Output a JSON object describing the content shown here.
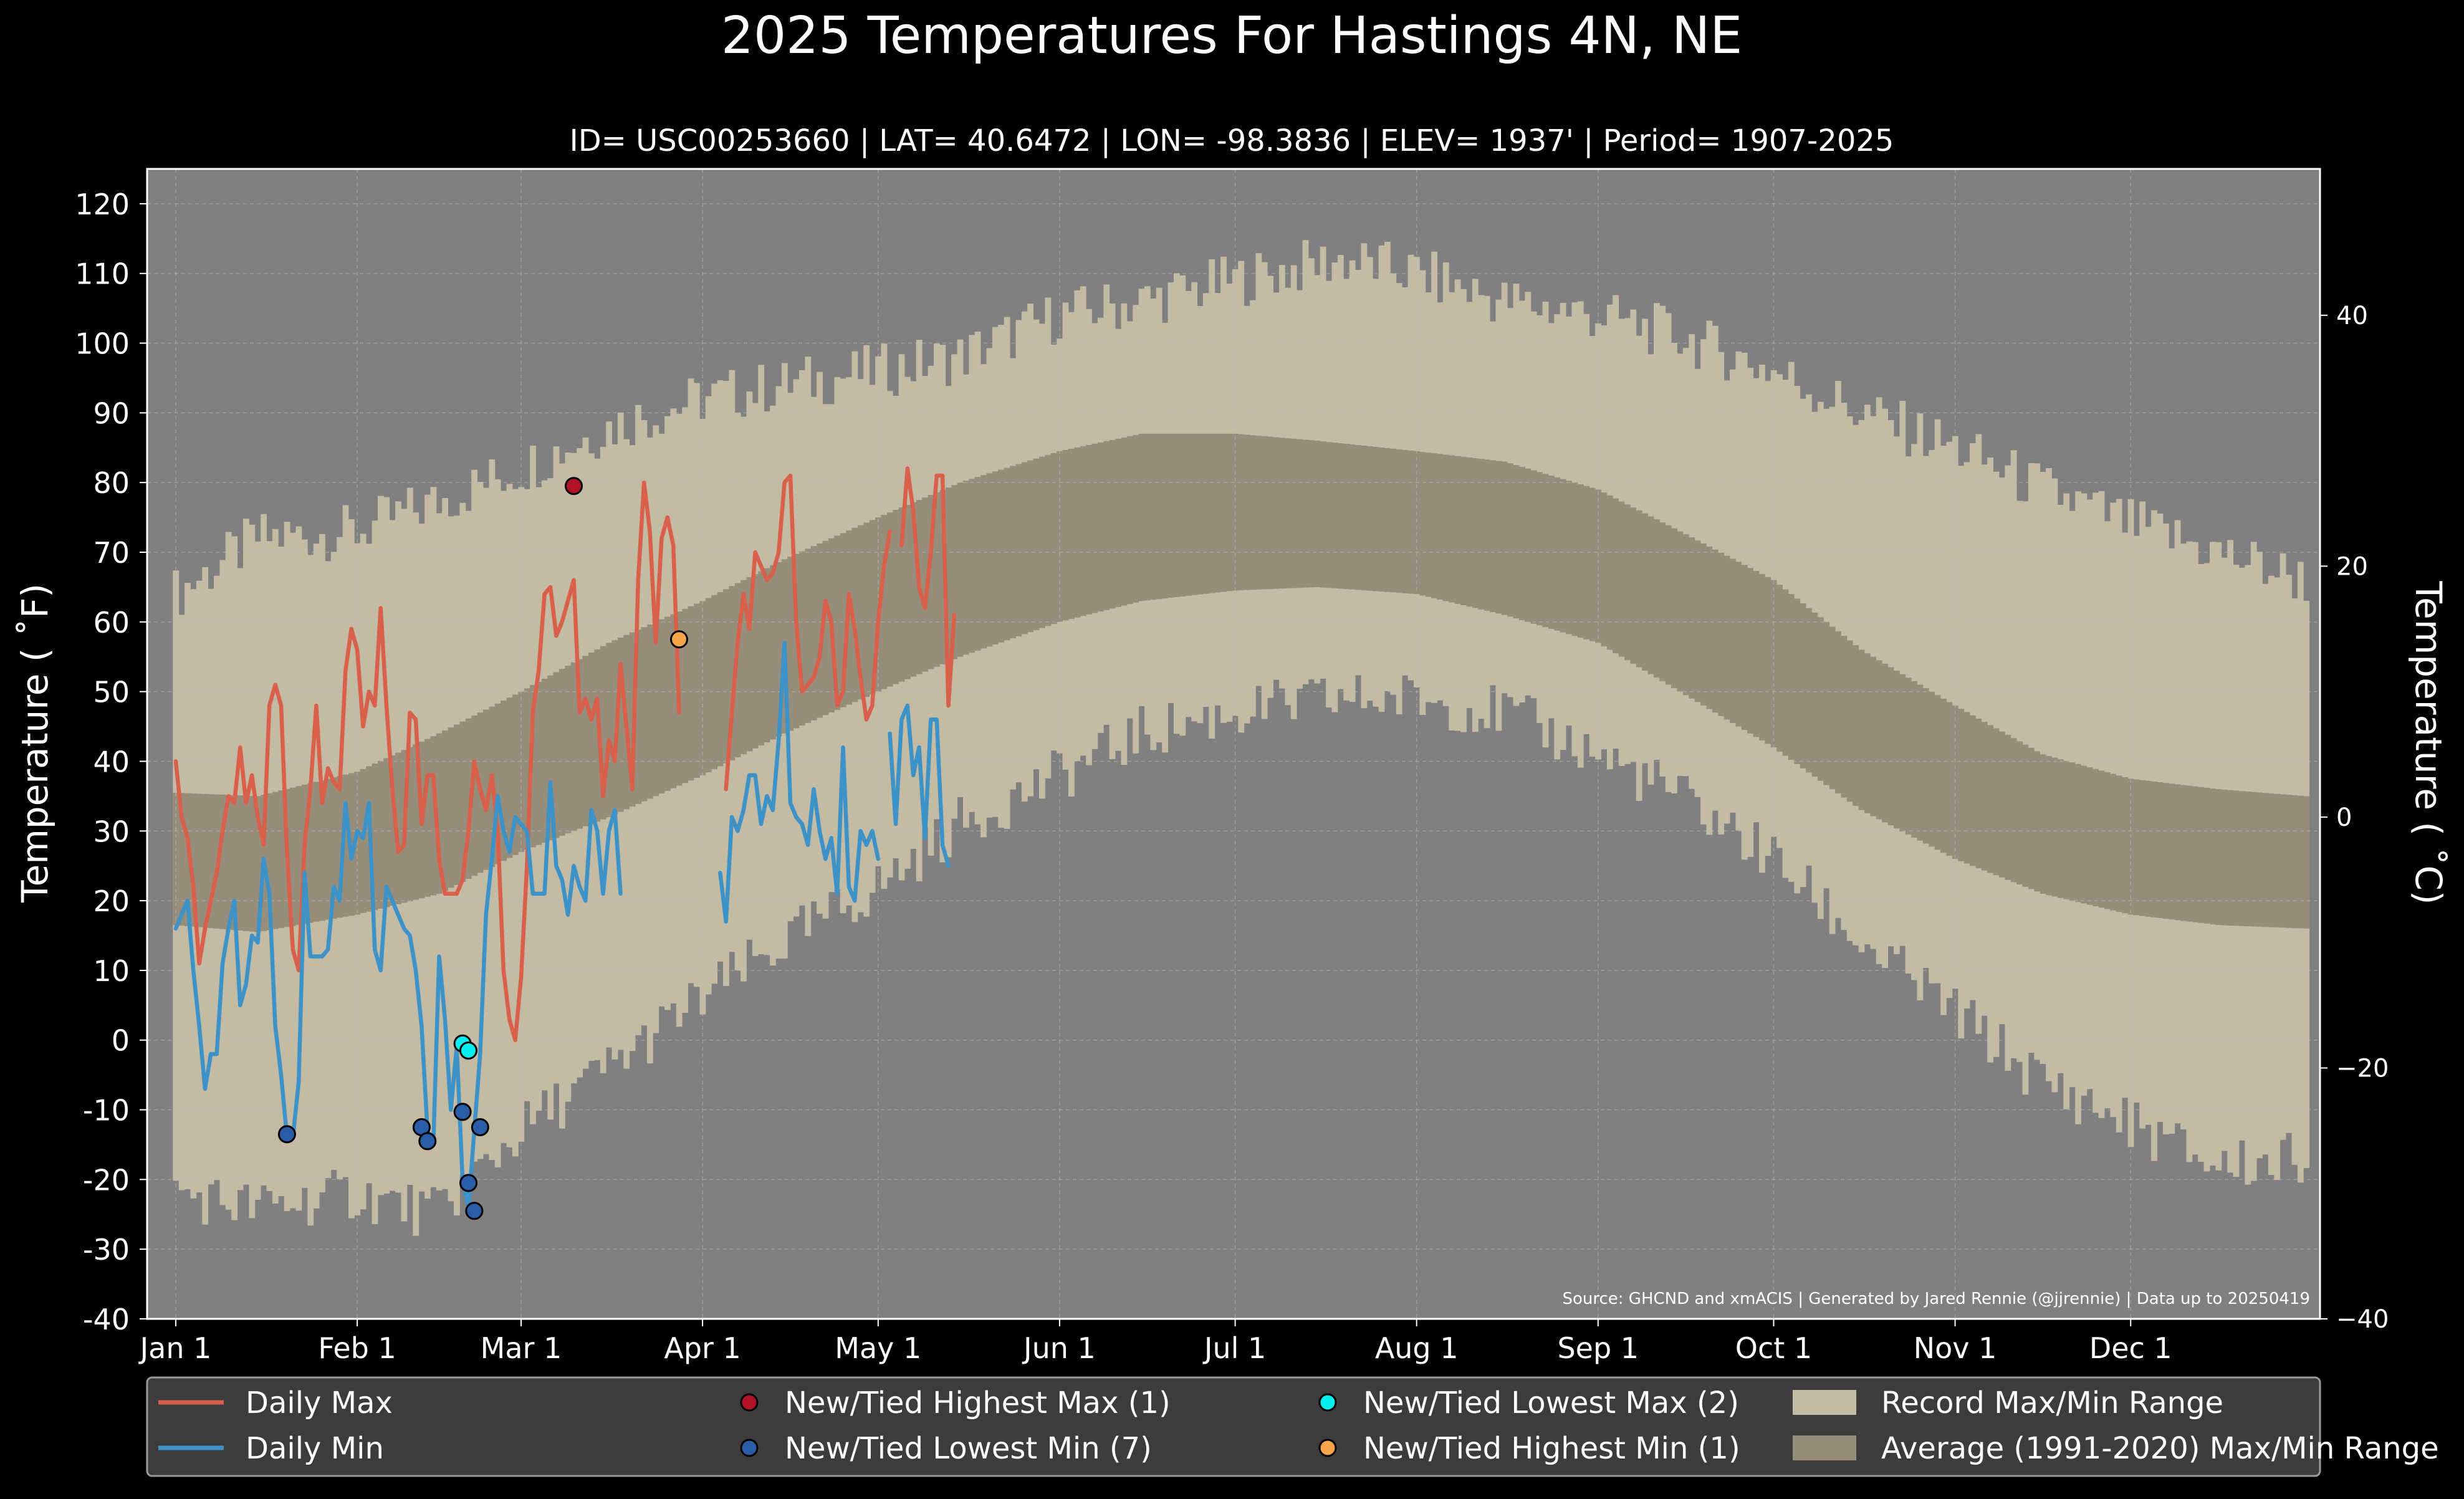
{
  "title": "2025 Temperatures For Hastings 4N, NE",
  "subtitle": "ID= USC00253660 | LAT= 40.6472 | LON= -98.3836 | ELEV= 1937' | Period= 1907-2025",
  "source_note": "Source: GHCND and xmACIS | Generated by Jared Rennie (@jjrennie) | Data up to 20250419",
  "colors": {
    "background": "#000000",
    "plot_bg": "#808080",
    "record_range": "#c4bba4",
    "normal_range": "#978d7b",
    "daily_max": "#d9604a",
    "daily_min": "#3d93c8",
    "high_max_marker": "#b11226",
    "low_min_marker": "#2a5ca8",
    "low_max_marker": "#00f0f0",
    "high_min_marker": "#f5a54a",
    "legend_bg": "#3c3c3c"
  },
  "chart_data": {
    "type": "line",
    "xlabel": "",
    "ylabel": "Temperature ($^\\circ$F)",
    "ylabel_display": "Temperature ( ˚F)",
    "y2label_display": "Temperature ( ˚C)",
    "ylim": [
      -40,
      125
    ],
    "xlim_day_of_year": [
      1,
      365
    ],
    "grid": true,
    "legend_placement": "bottom",
    "y_ticks": [
      -40,
      -30,
      -20,
      -10,
      0,
      10,
      20,
      30,
      40,
      50,
      60,
      70,
      80,
      90,
      100,
      110,
      120
    ],
    "y2_ticks_celsius": [
      -40,
      -20,
      0,
      20,
      40
    ],
    "x_ticks": [
      {
        "label": "Jan 1",
        "day": 1
      },
      {
        "label": "Feb 1",
        "day": 32
      },
      {
        "label": "Mar 1",
        "day": 60
      },
      {
        "label": "Apr 1",
        "day": 91
      },
      {
        "label": "May 1",
        "day": 121
      },
      {
        "label": "Jun 1",
        "day": 152
      },
      {
        "label": "Jul 1",
        "day": 182
      },
      {
        "label": "Aug 1",
        "day": 213
      },
      {
        "label": "Sep 1",
        "day": 244
      },
      {
        "label": "Oct 1",
        "day": 274
      },
      {
        "label": "Nov 1",
        "day": 305
      },
      {
        "label": "Dec 1",
        "day": 335
      }
    ],
    "record_range": {
      "name": "Record Max/Min Range",
      "max_anchors": [
        [
          1,
          64
        ],
        [
          15,
          72
        ],
        [
          32,
          73
        ],
        [
          45,
          77
        ],
        [
          60,
          82
        ],
        [
          75,
          88
        ],
        [
          91,
          92
        ],
        [
          105,
          94
        ],
        [
          121,
          96
        ],
        [
          135,
          98
        ],
        [
          152,
          104
        ],
        [
          166,
          106
        ],
        [
          182,
          109
        ],
        [
          200,
          112
        ],
        [
          213,
          110
        ],
        [
          228,
          106
        ],
        [
          244,
          104
        ],
        [
          258,
          101
        ],
        [
          274,
          96
        ],
        [
          289,
          90
        ],
        [
          305,
          85
        ],
        [
          320,
          79
        ],
        [
          335,
          74
        ],
        [
          350,
          70
        ],
        [
          365,
          66
        ]
      ],
      "min_anchors": [
        [
          1,
          -22
        ],
        [
          15,
          -24
        ],
        [
          32,
          -22
        ],
        [
          45,
          -25
        ],
        [
          60,
          -13
        ],
        [
          75,
          -4
        ],
        [
          91,
          6
        ],
        [
          105,
          14
        ],
        [
          121,
          22
        ],
        [
          135,
          31
        ],
        [
          152,
          38
        ],
        [
          166,
          44
        ],
        [
          182,
          47
        ],
        [
          200,
          49
        ],
        [
          213,
          49
        ],
        [
          228,
          47
        ],
        [
          244,
          41
        ],
        [
          258,
          35
        ],
        [
          274,
          26
        ],
        [
          289,
          14
        ],
        [
          305,
          4
        ],
        [
          320,
          -6
        ],
        [
          335,
          -12
        ],
        [
          350,
          -18
        ],
        [
          365,
          -17
        ]
      ]
    },
    "normal_range": {
      "name": "Average (1991-2020) Max/Min Range",
      "max_anchors": [
        [
          1,
          35.5
        ],
        [
          15,
          35
        ],
        [
          32,
          38.5
        ],
        [
          46,
          44
        ],
        [
          60,
          50
        ],
        [
          75,
          57
        ],
        [
          91,
          63
        ],
        [
          105,
          69
        ],
        [
          121,
          75
        ],
        [
          135,
          80
        ],
        [
          152,
          84.5
        ],
        [
          166,
          87
        ],
        [
          182,
          87
        ],
        [
          196,
          86
        ],
        [
          213,
          84.5
        ],
        [
          228,
          83
        ],
        [
          244,
          79
        ],
        [
          258,
          73
        ],
        [
          274,
          66
        ],
        [
          289,
          56
        ],
        [
          305,
          48
        ],
        [
          320,
          41
        ],
        [
          335,
          37.5
        ],
        [
          350,
          36
        ],
        [
          365,
          35
        ]
      ],
      "min_anchors": [
        [
          1,
          16.5
        ],
        [
          15,
          15.5
        ],
        [
          32,
          18
        ],
        [
          46,
          21
        ],
        [
          60,
          27
        ],
        [
          75,
          32
        ],
        [
          91,
          38
        ],
        [
          105,
          44
        ],
        [
          121,
          50
        ],
        [
          135,
          55
        ],
        [
          152,
          60
        ],
        [
          166,
          63
        ],
        [
          182,
          64.5
        ],
        [
          196,
          65
        ],
        [
          213,
          64
        ],
        [
          228,
          61
        ],
        [
          244,
          57
        ],
        [
          258,
          50
        ],
        [
          274,
          42
        ],
        [
          289,
          33
        ],
        [
          305,
          26
        ],
        [
          320,
          21
        ],
        [
          335,
          18
        ],
        [
          350,
          16.5
        ],
        [
          365,
          16
        ]
      ]
    },
    "series": [
      {
        "name": "Daily Max",
        "start_day": 1,
        "values": [
          40,
          32,
          29,
          22,
          11,
          16,
          20,
          24,
          30,
          35,
          34,
          42,
          34,
          38,
          32,
          28,
          48,
          51,
          48,
          27,
          13,
          10,
          28,
          36,
          48,
          34,
          39,
          37,
          36,
          53,
          59,
          56,
          45,
          50,
          48,
          62,
          48,
          36,
          27,
          28,
          47,
          46,
          31,
          38,
          38,
          26,
          21,
          21,
          21,
          23,
          30,
          40,
          36,
          33,
          38,
          30,
          10,
          3,
          0,
          9,
          25,
          47,
          53,
          64,
          65,
          58,
          60,
          63,
          66,
          47,
          49,
          46,
          49,
          35,
          43,
          40,
          54,
          45,
          36,
          66,
          80,
          73,
          57,
          72,
          75,
          71,
          47,
          null,
          null,
          null,
          null,
          null,
          null,
          null,
          36,
          47,
          57,
          64,
          59,
          70,
          68,
          66,
          67,
          70,
          80,
          81,
          60,
          50,
          51,
          52,
          55,
          63,
          60,
          48,
          50,
          64,
          59,
          52,
          46,
          48,
          60,
          68,
          73,
          null,
          71,
          82,
          76,
          65,
          62,
          70,
          81,
          81,
          48,
          61
        ]
      },
      {
        "name": "Daily Min",
        "start_day": 1,
        "values": [
          16,
          18,
          20,
          10,
          2,
          -7,
          -2,
          -2,
          11,
          16,
          20,
          5,
          8,
          15,
          14,
          26,
          21,
          2,
          -5,
          -14,
          -14,
          -6,
          24,
          12,
          12,
          12,
          13,
          22,
          20,
          34,
          26,
          30,
          29,
          34,
          13,
          10,
          22,
          20,
          18,
          16,
          15,
          10,
          2,
          -13,
          -15,
          12,
          3,
          -10,
          -1,
          -20,
          -24,
          -13,
          -2,
          18,
          26,
          35,
          30,
          27,
          32,
          31,
          30,
          21,
          21,
          21,
          37,
          25,
          23,
          18,
          25,
          22,
          20,
          33,
          30,
          21,
          30,
          33,
          21,
          null,
          null,
          null,
          null,
          null,
          null,
          null,
          null,
          null,
          null,
          null,
          null,
          null,
          null,
          null,
          null,
          24,
          17,
          32,
          30,
          33,
          38,
          38,
          31,
          35,
          33,
          43,
          57,
          34,
          32,
          31,
          28,
          36,
          30,
          26,
          29,
          21,
          42,
          22,
          20,
          30,
          28,
          30,
          26,
          null,
          44,
          31,
          46,
          48,
          38,
          42,
          29,
          46,
          46,
          28,
          25
        ]
      }
    ],
    "records": [
      {
        "name": "New/Tied Highest Max (1)",
        "points": [
          [
            69,
            79.5
          ]
        ]
      },
      {
        "name": "New/Tied Lowest Min (7)",
        "points": [
          [
            20,
            -13.5
          ],
          [
            43,
            -12.5
          ],
          [
            44,
            -14.5
          ],
          [
            50,
            -10.3
          ],
          [
            51,
            -20.5
          ],
          [
            52,
            -24.5
          ],
          [
            53,
            -12.5
          ]
        ]
      },
      {
        "name": "New/Tied Lowest Max (2)",
        "points": [
          [
            50,
            -0.5
          ],
          [
            51,
            -1.5
          ]
        ]
      },
      {
        "name": "New/Tied Highest Min (1)",
        "points": [
          [
            87,
            57.5
          ]
        ]
      }
    ]
  },
  "legend": {
    "items": [
      {
        "label": "Daily Max",
        "kind": "line",
        "color_key": "daily_max"
      },
      {
        "label": "Daily Min",
        "kind": "line",
        "color_key": "daily_min"
      },
      {
        "label": "New/Tied Highest Max (1)",
        "kind": "dot",
        "color_key": "high_max_marker"
      },
      {
        "label": "New/Tied Lowest Min (7)",
        "kind": "dot",
        "color_key": "low_min_marker"
      },
      {
        "label": "New/Tied Lowest Max (2)",
        "kind": "dot",
        "color_key": "low_max_marker"
      },
      {
        "label": "New/Tied Highest Min (1)",
        "kind": "dot",
        "color_key": "high_min_marker"
      },
      {
        "label": "Record Max/Min Range",
        "kind": "patch",
        "color_key": "record_range"
      },
      {
        "label": "Average (1991-2020) Max/Min Range",
        "kind": "patch",
        "color_key": "normal_range"
      }
    ]
  }
}
